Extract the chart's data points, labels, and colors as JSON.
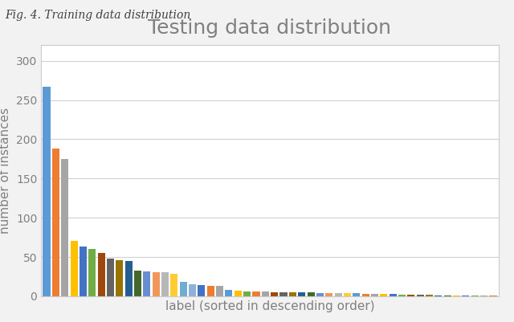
{
  "title": "Testing data distribution",
  "xlabel": "label (sorted in descending order)",
  "ylabel": "number of instances",
  "caption": "Fig. 4. Training data distribution",
  "ylim": [
    0,
    320
  ],
  "yticks": [
    0,
    50,
    100,
    150,
    200,
    250,
    300
  ],
  "values": [
    267,
    188,
    175,
    70,
    63,
    60,
    55,
    48,
    46,
    45,
    33,
    32,
    31,
    31,
    29,
    18,
    15,
    14,
    13,
    13,
    8,
    7,
    6,
    6,
    6,
    5,
    5,
    5,
    5,
    5,
    4,
    4,
    4,
    4,
    4,
    3,
    3,
    3,
    3,
    2,
    2,
    2,
    2,
    1,
    1,
    1,
    1,
    1,
    1,
    1
  ],
  "colors": [
    "#5B9BD5",
    "#ED7D31",
    "#A5A5A5",
    "#FFC000",
    "#4472C4",
    "#70AD47",
    "#9E480E",
    "#636363",
    "#997300",
    "#255E91",
    "#43682B",
    "#698ED0",
    "#F1975A",
    "#B7B7B7",
    "#FFCD33",
    "#72ACD0",
    "#8FB0D7",
    "#4472C4",
    "#ED7D31",
    "#A5A5A5",
    "#5B9BD5",
    "#FFC000",
    "#70AD47",
    "#ED7D31",
    "#A5A5A5",
    "#9E480E",
    "#636363",
    "#997300",
    "#255E91",
    "#43682B",
    "#698ED0",
    "#F1975A",
    "#B7B7B7",
    "#FFCD33",
    "#5B9BD5",
    "#ED7D31",
    "#A5A5A5",
    "#FFC000",
    "#4472C4",
    "#70AD47",
    "#9E480E",
    "#636363",
    "#997300",
    "#255E91",
    "#43682B",
    "#FFC000",
    "#4472C4",
    "#70AD47",
    "#A5A5A5",
    "#ED7D31"
  ],
  "outer_bg": "#f2f2f2",
  "inner_bg": "#ffffff",
  "plot_bg": "#ffffff",
  "title_color": "#808080",
  "label_color": "#808080",
  "tick_color": "#808080",
  "grid_color": "#d0d0d0",
  "caption_color": "#404040",
  "title_fontsize": 18,
  "label_fontsize": 11,
  "tick_fontsize": 10,
  "caption_fontsize": 10
}
